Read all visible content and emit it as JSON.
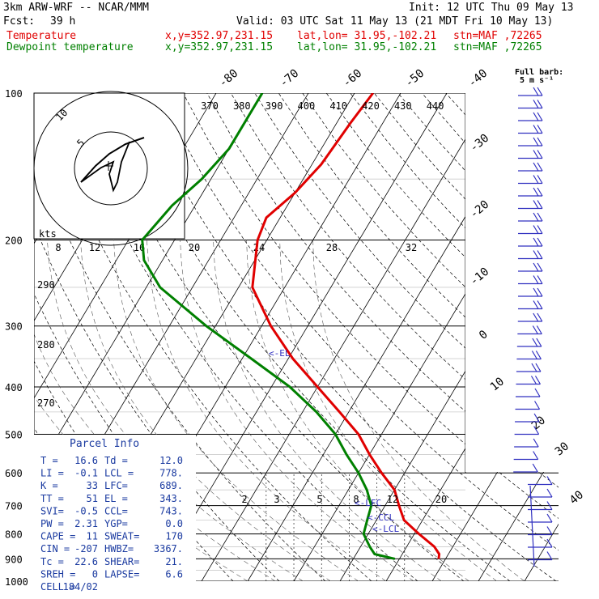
{
  "header": {
    "model": "3km ARW-WRF -- NCAR/MMM",
    "init": "Init: 12 UTC Thu 09 May 13",
    "fcst_label": "Fcst:",
    "fcst_value": "39 h",
    "valid": "Valid: 03 UTC Sat 11 May 13 (21 MDT Fri 10 May 13)",
    "temp_label": "Temperature",
    "dew_label": "Dewpoint temperature",
    "xy": "x,y=352.97,231.15",
    "latlon": "lat,lon= 31.95,-102.21",
    "stn": "stn=MAF ,72265",
    "full_barb_line1": "Full barb:",
    "full_barb_line2": "5 m s⁻¹"
  },
  "colors": {
    "temperature": "#e00000",
    "dewpoint": "#008000",
    "barbs": "#3030c0",
    "lines": "#000000"
  },
  "chart_data": {
    "type": "line",
    "diagram": "skew-T log-p",
    "pressure_levels": [
      100,
      200,
      300,
      400,
      500,
      600,
      700,
      800,
      900,
      1000
    ],
    "isotherm_labels": [
      -80,
      -70,
      -60,
      -50,
      -40,
      -30,
      -20,
      -10,
      0,
      10,
      20,
      30,
      40
    ],
    "theta_e_labels": [
      370,
      380,
      390,
      400,
      410,
      420,
      430,
      440
    ],
    "mixing_ratio_labels": [
      "2",
      "3",
      "5",
      "8",
      "12",
      "20"
    ],
    "dry_adiabat_labels": [
      290,
      280,
      270
    ],
    "hodograph": {
      "speed_labels": [
        "8",
        "12",
        "16",
        "20",
        "24",
        "28",
        "32"
      ],
      "ring_labels": [
        "5",
        "10"
      ],
      "units_label": "kts"
    },
    "series": [
      {
        "name": "Temperature",
        "points": [
          [
            100,
            -56
          ],
          [
            115,
            -57
          ],
          [
            140,
            -58
          ],
          [
            160,
            -60
          ],
          [
            180,
            -63
          ],
          [
            200,
            -62
          ],
          [
            250,
            -57
          ],
          [
            300,
            -48
          ],
          [
            350,
            -39
          ],
          [
            400,
            -30
          ],
          [
            450,
            -22
          ],
          [
            500,
            -15
          ],
          [
            550,
            -10
          ],
          [
            600,
            -5
          ],
          [
            650,
            0
          ],
          [
            700,
            3
          ],
          [
            750,
            6
          ],
          [
            800,
            11
          ],
          [
            850,
            16
          ],
          [
            880,
            18
          ],
          [
            900,
            18.5
          ]
        ]
      },
      {
        "name": "Dewpoint temperature",
        "points": [
          [
            100,
            -80
          ],
          [
            130,
            -80
          ],
          [
            150,
            -82
          ],
          [
            170,
            -85
          ],
          [
            200,
            -87
          ],
          [
            220,
            -84
          ],
          [
            250,
            -77
          ],
          [
            300,
            -62
          ],
          [
            350,
            -48
          ],
          [
            400,
            -36
          ],
          [
            450,
            -27
          ],
          [
            500,
            -20
          ],
          [
            550,
            -15
          ],
          [
            600,
            -10
          ],
          [
            650,
            -6
          ],
          [
            700,
            -3
          ],
          [
            750,
            -2
          ],
          [
            800,
            -1
          ],
          [
            850,
            2
          ],
          [
            880,
            4
          ],
          [
            900,
            9
          ]
        ]
      }
    ],
    "annotations": [
      "<-EL",
      "<-LFC",
      "<-CCL",
      "<-LCL"
    ],
    "parcel_info": {
      "title": "Parcel Info",
      "rows": [
        [
          "T  =",
          "16.6",
          "Td =",
          "12.0"
        ],
        [
          "LI =",
          "-0.1",
          "LCL =",
          "778."
        ],
        [
          "K  =",
          "33",
          "LFC=",
          "689."
        ],
        [
          "TT =",
          "51",
          "EL =",
          "343."
        ],
        [
          "SVI=",
          "-0.5",
          "CCL=",
          "743."
        ],
        [
          "PW =",
          "2.31",
          "YGP=",
          "0.0"
        ],
        [
          "CAPE =",
          "11",
          "SWEAT=",
          "170"
        ],
        [
          "CIN =",
          "-207",
          "HWBZ=",
          "3367."
        ],
        [
          "Tc =",
          "22.6",
          "SHEAR=",
          "21."
        ],
        [
          "SREH =",
          "0",
          "LAPSE=",
          "6.6"
        ],
        [
          "CELL =",
          "184/02",
          "",
          ""
        ]
      ]
    }
  }
}
